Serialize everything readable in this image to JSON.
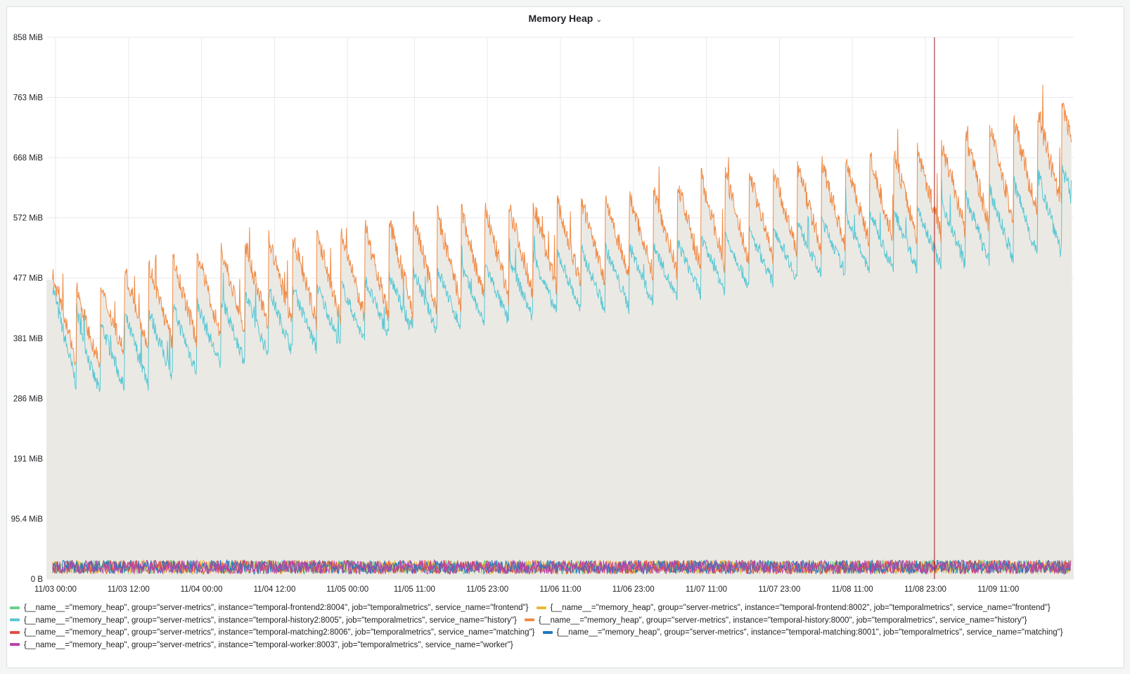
{
  "panel": {
    "title": "Memory Heap",
    "menu_icon": "chevron-down-icon"
  },
  "chart_data": {
    "type": "area",
    "title": "Memory Heap",
    "xlabel": "",
    "ylabel": "",
    "x_range": [
      "11/03 00:00",
      "11/09 23:00"
    ],
    "ylim": [
      0,
      858
    ],
    "y_unit": "MiB",
    "grid": true,
    "legend_position": "bottom",
    "y_ticks": [
      "0 B",
      "95.4 MiB",
      "191 MiB",
      "286 MiB",
      "381 MiB",
      "477 MiB",
      "572 MiB",
      "668 MiB",
      "763 MiB",
      "858 MiB"
    ],
    "x_ticks": [
      "11/03 00:00",
      "11/03 12:00",
      "11/04 00:00",
      "11/04 12:00",
      "11/05 00:00",
      "11/05 11:00",
      "11/05 23:00",
      "11/06 11:00",
      "11/06 23:00",
      "11/07 11:00",
      "11/07 23:00",
      "11/08 11:00",
      "11/08 23:00",
      "11/09 11:00"
    ],
    "series": [
      {
        "name": "{__name__=\"memory_heap\", group=\"server-metrics\", instance=\"temporal-frontend2:8004\", job=\"temporalmetrics\", service_name=\"frontend\"}",
        "color": "#6ccf8e",
        "pattern": "noise",
        "min": 8,
        "max": 30,
        "x": [
          "11/03 00:00",
          "11/05 11:00",
          "11/09 23:00"
        ],
        "y": [
          18,
          18,
          18
        ]
      },
      {
        "name": "{__name__=\"memory_heap\", group=\"server-metrics\", instance=\"temporal-frontend:8002\", job=\"temporalmetrics\", service_name=\"frontend\"}",
        "color": "#eab839",
        "pattern": "noise",
        "min": 8,
        "max": 30,
        "x": [
          "11/03 00:00",
          "11/05 11:00",
          "11/09 23:00"
        ],
        "y": [
          18,
          18,
          18
        ]
      },
      {
        "name": "{__name__=\"memory_heap\", group=\"server-metrics\", instance=\"temporal-history2:8005\", job=\"temporalmetrics\", service_name=\"history\"}",
        "color": "#5ac8d4",
        "pattern": "sawtooth",
        "x": [
          "11/03 00:00",
          "11/03 06:00",
          "11/03 12:00",
          "11/04 00:00",
          "11/04 12:00",
          "11/05 00:00",
          "11/05 11:00",
          "11/05 23:00",
          "11/06 11:00",
          "11/06 23:00",
          "11/07 11:00",
          "11/07 23:00",
          "11/08 11:00",
          "11/08 23:00",
          "11/09 11:00",
          "11/09 23:00"
        ],
        "y_min": [
          330,
          290,
          300,
          330,
          355,
          370,
          390,
          400,
          420,
          430,
          450,
          470,
          485,
          490,
          500,
          520
        ],
        "y_max": [
          460,
          400,
          420,
          440,
          460,
          470,
          490,
          500,
          520,
          530,
          540,
          560,
          580,
          590,
          620,
          660
        ]
      },
      {
        "name": "{__name__=\"memory_heap\", group=\"server-metrics\", instance=\"temporal-history:8000\", job=\"temporalmetrics\", service_name=\"history\"}",
        "color": "#f08c48",
        "pattern": "sawtooth",
        "x": [
          "11/03 00:00",
          "11/03 06:00",
          "11/03 12:00",
          "11/04 00:00",
          "11/04 12:00",
          "11/05 00:00",
          "11/05 11:00",
          "11/05 23:00",
          "11/06 11:00",
          "11/06 23:00",
          "11/07 11:00",
          "11/07 23:00",
          "11/08 11:00",
          "11/08 23:00",
          "11/09 11:00",
          "11/09 23:00"
        ],
        "y_min": [
          360,
          330,
          360,
          380,
          400,
          410,
          420,
          440,
          460,
          480,
          490,
          510,
          530,
          540,
          560,
          590
        ],
        "y_max": [
          480,
          450,
          490,
          520,
          540,
          550,
          580,
          590,
          600,
          610,
          640,
          650,
          670,
          680,
          720,
          760
        ]
      },
      {
        "name": "{__name__=\"memory_heap\", group=\"server-metrics\", instance=\"temporal-matching2:8006\", job=\"temporalmetrics\", service_name=\"matching\"}",
        "color": "#e24d42",
        "pattern": "noise",
        "min": 8,
        "max": 30,
        "x": [
          "11/03 00:00",
          "11/05 11:00",
          "11/09 23:00"
        ],
        "y": [
          18,
          18,
          18
        ]
      },
      {
        "name": "{__name__=\"memory_heap\", group=\"server-metrics\", instance=\"temporal-matching:8001\", job=\"temporalmetrics\", service_name=\"matching\"}",
        "color": "#1f78c1",
        "pattern": "noise",
        "min": 8,
        "max": 30,
        "x": [
          "11/03 00:00",
          "11/05 11:00",
          "11/09 23:00"
        ],
        "y": [
          18,
          18,
          18
        ]
      },
      {
        "name": "{__name__=\"memory_heap\", group=\"server-metrics\", instance=\"temporal-worker:8003\", job=\"temporalmetrics\", service_name=\"worker\"}",
        "color": "#ba43a9",
        "pattern": "noise",
        "min": 8,
        "max": 30,
        "x": [
          "11/03 00:00",
          "11/05 11:00",
          "11/09 23:00"
        ],
        "y": [
          18,
          18,
          18
        ]
      }
    ],
    "cursor_x": "11/09 00:30"
  },
  "colors": {
    "grid": "#e9eaec",
    "area_fill": "#ebe9e4",
    "cursor": "#a31515"
  }
}
